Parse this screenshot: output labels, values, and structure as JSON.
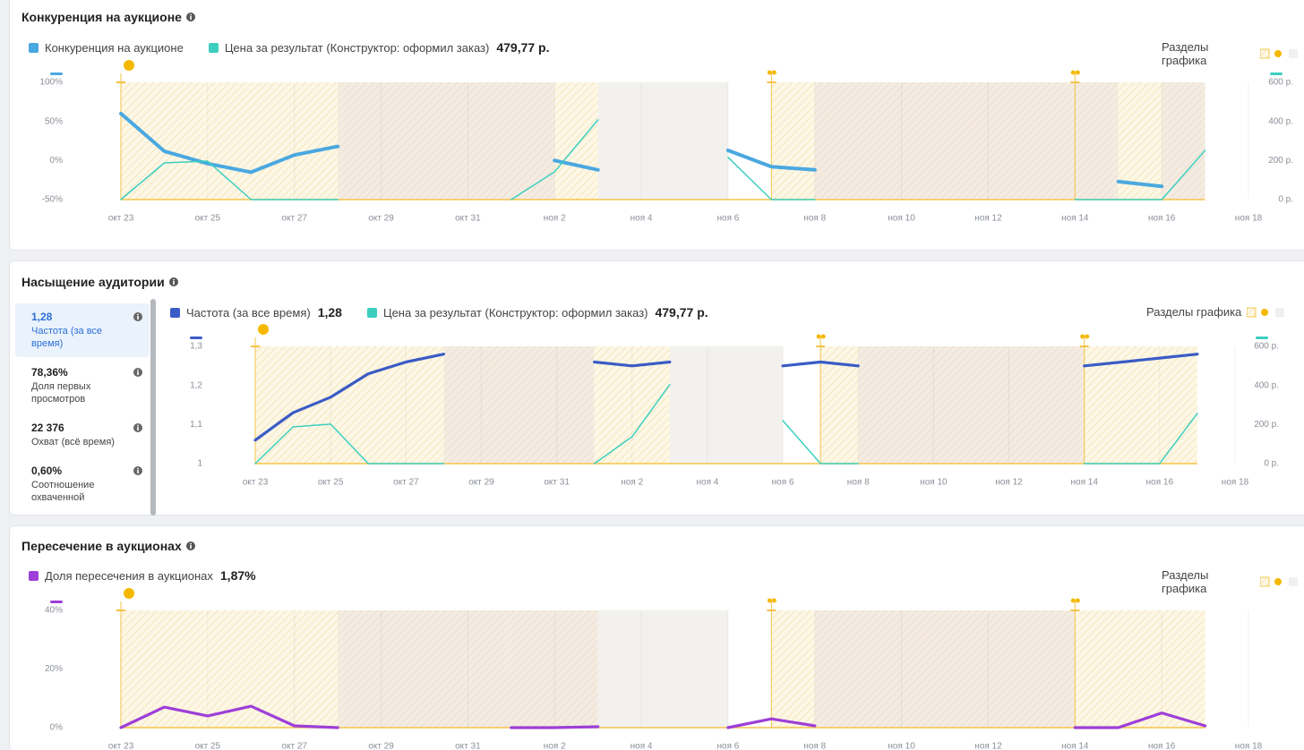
{
  "chart_data": [
    {
      "type": "line",
      "title": "Конкуренция на аукционе",
      "sections_label": "Разделы графика",
      "categories": [
        "окт 23",
        null,
        "окт 25",
        null,
        "окт 27",
        null,
        "окт 29",
        null,
        "окт 31",
        null,
        "ноя 2",
        null,
        "ноя 4",
        null,
        "ноя 6",
        null,
        "ноя 8",
        null,
        "ноя 10",
        null,
        "ноя 12",
        null,
        "ноя 14",
        null,
        "ноя 16",
        null,
        "ноя 18"
      ],
      "series": [
        {
          "name": "Конкуренция на аукционе",
          "color": "#4aa8e0",
          "values": [
            60,
            12,
            -4,
            -15,
            7,
            18,
            null,
            null,
            null,
            null,
            0,
            -12,
            null,
            null,
            13,
            -8,
            -12,
            null,
            null,
            null,
            null,
            null,
            null,
            -27,
            -33,
            null,
            null
          ]
        },
        {
          "name": "Цена за результат (Конструктор: оформил заказ)",
          "legend_value": "479,77 р.",
          "color": "#3ccfc0",
          "axis": "y2",
          "values": [
            0,
            188,
            197,
            0,
            0,
            0,
            null,
            null,
            null,
            0,
            142,
            408,
            null,
            null,
            216,
            0,
            0,
            null,
            null,
            null,
            null,
            null,
            0,
            0,
            0,
            252,
            null
          ]
        }
      ],
      "ylim": [
        -50,
        100
      ],
      "yticks": [
        {
          "value": -50,
          "label": "-50%"
        },
        {
          "value": 0,
          "label": "0%"
        },
        {
          "value": 50,
          "label": "50%"
        },
        {
          "value": 100,
          "label": "100%"
        }
      ],
      "y2lim": [
        0,
        600
      ],
      "y2ticks": [
        {
          "value": 0,
          "label": "0 р."
        },
        {
          "value": 200,
          "label": "200 р."
        },
        {
          "value": 400,
          "label": "400 р."
        },
        {
          "value": 600,
          "label": "600 р."
        }
      ]
    },
    {
      "type": "line",
      "title": "Насыщение аудитории",
      "sections_label": "Разделы графика",
      "categories": [
        "окт 23",
        null,
        "окт 25",
        null,
        "окт 27",
        null,
        "окт 29",
        null,
        "окт 31",
        null,
        "ноя 2",
        null,
        "ноя 4",
        null,
        "ноя 6",
        null,
        "ноя 8",
        null,
        "ноя 10",
        null,
        "ноя 12",
        null,
        "ноя 14",
        null,
        "ноя 16",
        null,
        "ноя 18"
      ],
      "series": [
        {
          "name": "Частота (за все время)",
          "legend_value": "1,28",
          "color": "#3b5cc6",
          "values": [
            1.06,
            1.13,
            1.17,
            1.23,
            1.26,
            1.28,
            null,
            null,
            null,
            1.26,
            1.25,
            1.26,
            null,
            null,
            1.25,
            1.26,
            1.25,
            null,
            null,
            null,
            null,
            null,
            1.25,
            1.26,
            1.27,
            1.28,
            null
          ]
        },
        {
          "name": "Цена за результат (Конструктор: оформил заказ)",
          "legend_value": "479,77 р.",
          "color": "#3ccfc0",
          "axis": "y2",
          "values": [
            0,
            188,
            202,
            0,
            0,
            0,
            null,
            null,
            null,
            0,
            138,
            404,
            null,
            null,
            220,
            0,
            0,
            null,
            null,
            null,
            null,
            null,
            0,
            0,
            0,
            257,
            null
          ]
        }
      ],
      "ylim": [
        1,
        1.3
      ],
      "yticks": [
        1,
        {
          "value": 1.1,
          "label": "1,1"
        },
        {
          "value": 1.2,
          "label": "1,2"
        },
        {
          "value": 1.3,
          "label": "1,3"
        }
      ],
      "y2lim": [
        0,
        600
      ],
      "y2ticks": [
        {
          "value": 0,
          "label": "0 р."
        },
        {
          "value": 200,
          "label": "200 р."
        },
        {
          "value": 400,
          "label": "400 р."
        },
        {
          "value": 600,
          "label": "600 р."
        }
      ]
    },
    {
      "type": "line",
      "title": "Пересечение в аукционах",
      "sections_label": "Разделы графика",
      "categories": [
        "окт 23",
        null,
        "окт 25",
        null,
        "окт 27",
        null,
        "окт 29",
        null,
        "окт 31",
        null,
        "ноя 2",
        null,
        "ноя 4",
        null,
        "ноя 6",
        null,
        "ноя 8",
        null,
        "ноя 10",
        null,
        "ноя 12",
        null,
        "ноя 14",
        null,
        "ноя 16",
        null,
        "ноя 18"
      ],
      "series": [
        {
          "name": "Доля пересечения в аукционах",
          "legend_value": "1,87%",
          "color": "#9d3fd8",
          "values": [
            0,
            7,
            4,
            7.3,
            0.6,
            0,
            null,
            null,
            null,
            0,
            0,
            0.3,
            null,
            null,
            0,
            3,
            0.6,
            null,
            null,
            null,
            null,
            null,
            0,
            0,
            5,
            0.6,
            null
          ]
        }
      ],
      "ylim": [
        0,
        40
      ],
      "yticks": [
        {
          "value": 0,
          "label": "0%"
        },
        {
          "value": 20,
          "label": "20%"
        },
        {
          "value": 40,
          "label": "40%"
        }
      ]
    }
  ],
  "sidebar": [
    {
      "value": "1,28",
      "label": "Частота (за все время)"
    },
    {
      "value": "78,36%",
      "label": "Доля первых просмотров"
    },
    {
      "value": "22 376",
      "label": "Охват (всё время)"
    },
    {
      "value": "0,60%",
      "label": "Соотношение охваченной"
    }
  ]
}
